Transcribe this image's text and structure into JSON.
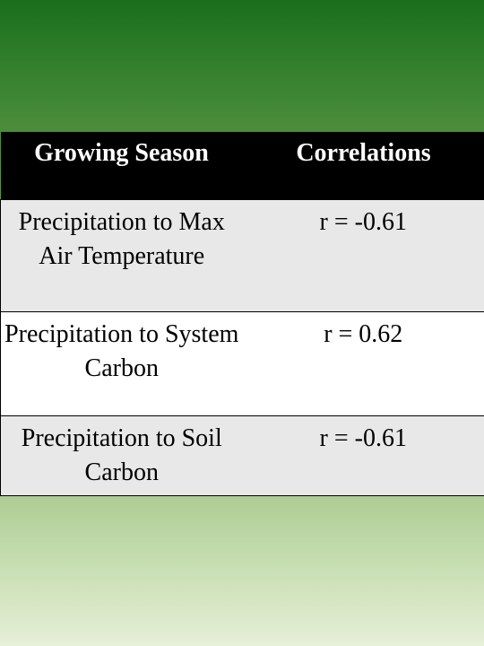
{
  "table": {
    "headers": [
      "Growing Season",
      "Correlations"
    ],
    "rows": [
      {
        "variable": "Precipitation to Max Air Temperature",
        "correlation": "r = -0.61"
      },
      {
        "variable": "Precipitation to System Carbon",
        "correlation": "r = 0.62"
      },
      {
        "variable": "Precipitation to Soil Carbon",
        "correlation": "r = -0.61"
      }
    ]
  }
}
